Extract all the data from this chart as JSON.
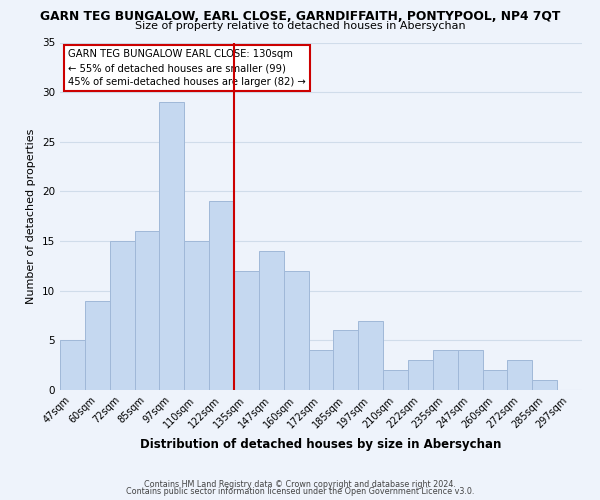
{
  "title": "GARN TEG BUNGALOW, EARL CLOSE, GARNDIFFAITH, PONTYPOOL, NP4 7QT",
  "subtitle": "Size of property relative to detached houses in Abersychan",
  "xlabel": "Distribution of detached houses by size in Abersychan",
  "ylabel": "Number of detached properties",
  "bar_labels": [
    "47sqm",
    "60sqm",
    "72sqm",
    "85sqm",
    "97sqm",
    "110sqm",
    "122sqm",
    "135sqm",
    "147sqm",
    "160sqm",
    "172sqm",
    "185sqm",
    "197sqm",
    "210sqm",
    "222sqm",
    "235sqm",
    "247sqm",
    "260sqm",
    "272sqm",
    "285sqm",
    "297sqm"
  ],
  "bar_values": [
    5,
    9,
    15,
    16,
    29,
    15,
    19,
    12,
    14,
    12,
    4,
    6,
    7,
    2,
    3,
    4,
    4,
    2,
    3,
    1,
    0
  ],
  "bar_color": "#c5d8f0",
  "bar_edge_color": "#a0b8d8",
  "grid_color": "#d0dcea",
  "background_color": "#eef3fb",
  "vline_color": "#cc0000",
  "annotation_text": "GARN TEG BUNGALOW EARL CLOSE: 130sqm\n← 55% of detached houses are smaller (99)\n45% of semi-detached houses are larger (82) →",
  "annotation_box_color": "#ffffff",
  "annotation_box_edge": "#cc0000",
  "ylim": [
    0,
    35
  ],
  "yticks": [
    0,
    5,
    10,
    15,
    20,
    25,
    30,
    35
  ],
  "footer_line1": "Contains HM Land Registry data © Crown copyright and database right 2024.",
  "footer_line2": "Contains public sector information licensed under the Open Government Licence v3.0."
}
